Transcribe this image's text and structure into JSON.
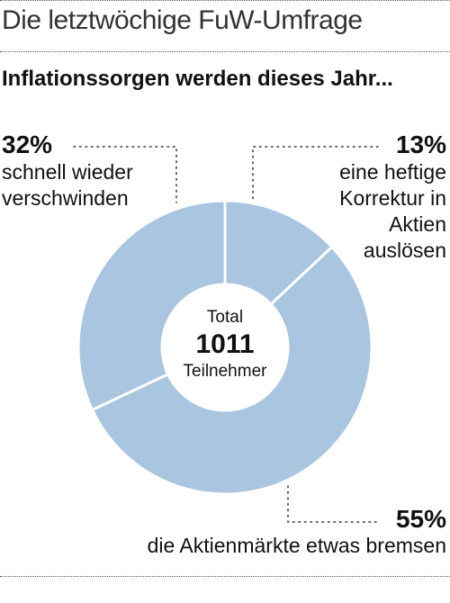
{
  "header": {
    "title": "Die letztwöchige FuW-Umfrage",
    "subtitle": "Inflationssorgen werden dieses Jahr..."
  },
  "chart_data": {
    "type": "pie",
    "variant": "donut",
    "color": "#a9c5df",
    "center": {
      "line1": "Total",
      "value": "1011",
      "line3": "Teilnehmer"
    },
    "slices": [
      {
        "value": 13,
        "label": "13%",
        "text": [
          "eine heftige",
          "Korrektur in",
          "Aktien",
          "auslösen"
        ]
      },
      {
        "value": 55,
        "label": "55%",
        "text": [
          "die Aktienmärkte etwas bremsen"
        ]
      },
      {
        "value": 32,
        "label": "32%",
        "text": [
          "schnell wieder",
          "verschwinden"
        ]
      }
    ]
  }
}
